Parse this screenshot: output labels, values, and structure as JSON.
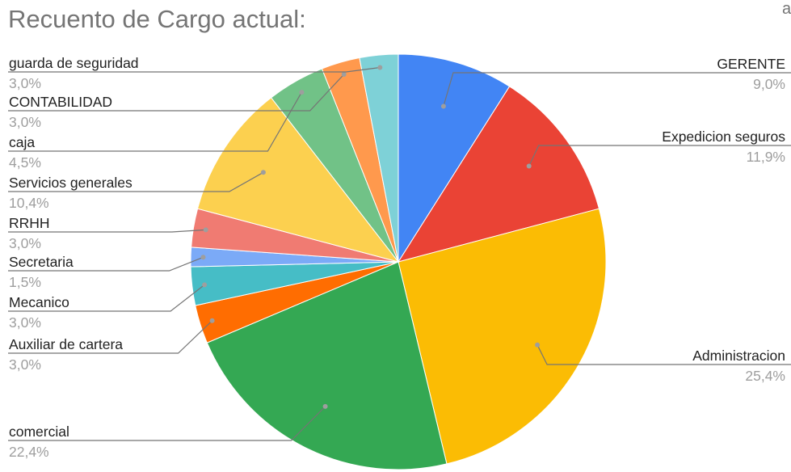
{
  "chart_data": {
    "type": "pie",
    "title": "Recuento de Cargo actual:",
    "corner_text": "a",
    "slices": [
      {
        "label": "GERENTE",
        "value": 9.0,
        "percent_label": "9,0%",
        "color": "#4285F4"
      },
      {
        "label": "Expedicion seguros",
        "value": 11.9,
        "percent_label": "11,9%",
        "color": "#EA4335"
      },
      {
        "label": "Administracion",
        "value": 25.4,
        "percent_label": "25,4%",
        "color": "#FBBC04"
      },
      {
        "label": "comercial",
        "value": 22.4,
        "percent_label": "22,4%",
        "color": "#34A853"
      },
      {
        "label": "Auxiliar de cartera",
        "value": 3.0,
        "percent_label": "3,0%",
        "color": "#FF6D01"
      },
      {
        "label": "Mecanico",
        "value": 3.0,
        "percent_label": "3,0%",
        "color": "#46BDC6"
      },
      {
        "label": "Secretaria",
        "value": 1.5,
        "percent_label": "1,5%",
        "color": "#7BAAF7"
      },
      {
        "label": "RRHH",
        "value": 3.0,
        "percent_label": "3,0%",
        "color": "#F07B72"
      },
      {
        "label": "Servicios generales",
        "value": 10.4,
        "percent_label": "10,4%",
        "color": "#FCD04F"
      },
      {
        "label": "caja",
        "value": 4.5,
        "percent_label": "4,5%",
        "color": "#71C287"
      },
      {
        "label": "CONTABILIDAD",
        "value": 3.0,
        "percent_label": "3,0%",
        "color": "#FF994D"
      },
      {
        "label": "guarda de seguridad",
        "value": 3.0,
        "percent_label": "3,0%",
        "color": "#7ED1D7"
      }
    ]
  }
}
